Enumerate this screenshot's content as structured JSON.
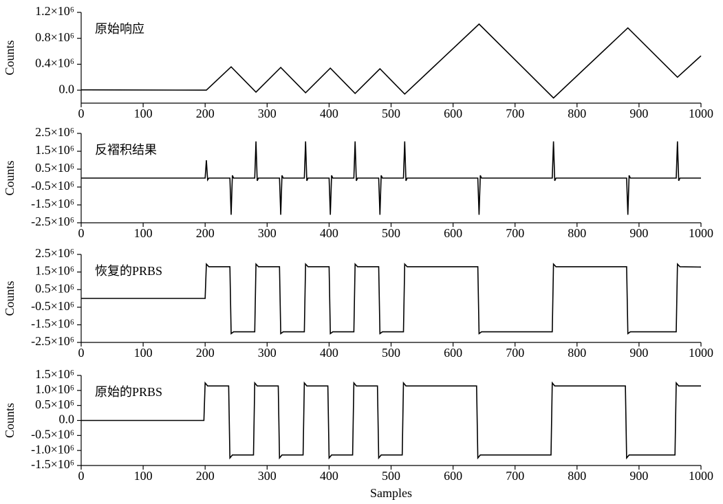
{
  "chart_data": [
    {
      "type": "line",
      "annotation": "原始响应",
      "ylabel": "Counts",
      "color": "#000000",
      "x": [
        0,
        202,
        242,
        282,
        322,
        362,
        402,
        442,
        482,
        522,
        642,
        762,
        882,
        962,
        1000
      ],
      "values": [
        5000,
        0,
        360000,
        -30000,
        350000,
        -40000,
        340000,
        -50000,
        330000,
        -60000,
        1020000,
        -120000,
        960000,
        200000,
        530000
      ],
      "xlim": [
        0,
        1000
      ],
      "xticks": [
        0,
        100,
        200,
        300,
        400,
        500,
        600,
        700,
        800,
        900,
        1000
      ],
      "ylim": [
        -200000,
        1200000
      ],
      "yticks": [
        {
          "value": 0,
          "label": "0.0"
        },
        {
          "value": 400000,
          "label": "0.4×10⁶"
        },
        {
          "value": 800000,
          "label": "0.8×10⁶"
        },
        {
          "value": 1200000,
          "label": "1.2×10⁶"
        }
      ]
    },
    {
      "type": "line",
      "annotation": "反褶积结果",
      "ylabel": "Counts",
      "color": "#000000",
      "x": [
        0,
        200,
        202,
        204,
        206,
        240,
        242,
        244,
        246,
        280,
        282,
        284,
        286,
        320,
        322,
        324,
        326,
        360,
        362,
        364,
        366,
        400,
        402,
        404,
        406,
        440,
        442,
        444,
        446,
        480,
        482,
        484,
        486,
        520,
        522,
        524,
        526,
        640,
        642,
        644,
        646,
        760,
        762,
        764,
        766,
        880,
        882,
        884,
        886,
        960,
        962,
        964,
        966,
        1000
      ],
      "values": [
        0,
        0,
        1000000,
        -100000,
        0,
        0,
        -2050000,
        150000,
        0,
        0,
        2050000,
        -150000,
        0,
        0,
        -2050000,
        150000,
        0,
        0,
        2050000,
        -150000,
        0,
        0,
        -2050000,
        150000,
        0,
        0,
        2050000,
        -150000,
        0,
        0,
        -2050000,
        150000,
        0,
        0,
        2050000,
        -150000,
        0,
        0,
        -2050000,
        150000,
        0,
        0,
        2050000,
        -150000,
        0,
        0,
        -2050000,
        150000,
        0,
        0,
        2050000,
        -150000,
        0,
        0
      ],
      "xlim": [
        0,
        1000
      ],
      "xticks": [
        0,
        100,
        200,
        300,
        400,
        500,
        600,
        700,
        800,
        900,
        1000
      ],
      "ylim": [
        -2500000,
        2500000
      ],
      "yticks": [
        {
          "value": -2500000,
          "label": "-2.5×10⁶"
        },
        {
          "value": -1500000,
          "label": "-1.5×10⁶"
        },
        {
          "value": -500000,
          "label": "-0.5×10⁶"
        },
        {
          "value": 500000,
          "label": "0.5×10⁶"
        },
        {
          "value": 1500000,
          "label": "1.5×10⁶"
        },
        {
          "value": 2500000,
          "label": "2.5×10⁶"
        }
      ]
    },
    {
      "type": "line",
      "annotation": "恢复的PRBS",
      "ylabel": "Counts",
      "color": "#000000",
      "x": [
        0,
        200,
        202,
        206,
        240,
        242,
        246,
        280,
        282,
        286,
        320,
        322,
        326,
        360,
        362,
        366,
        400,
        402,
        406,
        440,
        442,
        446,
        480,
        482,
        486,
        520,
        522,
        526,
        640,
        642,
        646,
        760,
        762,
        766,
        880,
        882,
        886,
        960,
        962,
        966,
        1000
      ],
      "values": [
        0,
        0,
        1950000,
        1800000,
        1800000,
        -2000000,
        -1900000,
        -1900000,
        1950000,
        1800000,
        1800000,
        -2000000,
        -1900000,
        -1900000,
        1950000,
        1800000,
        1800000,
        -2000000,
        -1900000,
        -1900000,
        1950000,
        1800000,
        1800000,
        -2000000,
        -1900000,
        -1900000,
        1950000,
        1800000,
        1800000,
        -2000000,
        -1900000,
        -1900000,
        1950000,
        1800000,
        1800000,
        -2000000,
        -1900000,
        -1900000,
        1950000,
        1800000,
        1780000
      ],
      "xlim": [
        0,
        1000
      ],
      "xticks": [
        0,
        100,
        200,
        300,
        400,
        500,
        600,
        700,
        800,
        900,
        1000
      ],
      "ylim": [
        -2500000,
        2500000
      ],
      "yticks": [
        {
          "value": -2500000,
          "label": "-2.5×10⁶"
        },
        {
          "value": -1500000,
          "label": "-1.5×10⁶"
        },
        {
          "value": -500000,
          "label": "-0.5×10⁶"
        },
        {
          "value": 500000,
          "label": "0.5×10⁶"
        },
        {
          "value": 1500000,
          "label": "1.5×10⁶"
        },
        {
          "value": 2500000,
          "label": "2.5×10⁶"
        }
      ]
    },
    {
      "type": "line",
      "annotation": "原始的PRBS",
      "ylabel": "Counts",
      "xlabel": "Samples",
      "color": "#000000",
      "x": [
        0,
        198,
        200,
        204,
        238,
        240,
        244,
        278,
        280,
        284,
        318,
        320,
        324,
        358,
        360,
        364,
        398,
        400,
        404,
        438,
        440,
        444,
        478,
        480,
        484,
        518,
        520,
        524,
        638,
        640,
        644,
        758,
        760,
        764,
        878,
        880,
        884,
        958,
        960,
        964,
        1000
      ],
      "values": [
        0,
        0,
        1250000,
        1150000,
        1150000,
        -1250000,
        -1150000,
        -1150000,
        1250000,
        1150000,
        1150000,
        -1250000,
        -1150000,
        -1150000,
        1250000,
        1150000,
        1150000,
        -1250000,
        -1150000,
        -1150000,
        1250000,
        1150000,
        1150000,
        -1250000,
        -1150000,
        -1150000,
        1250000,
        1150000,
        1150000,
        -1250000,
        -1150000,
        -1150000,
        1250000,
        1150000,
        1150000,
        -1250000,
        -1150000,
        -1150000,
        1250000,
        1150000,
        1150000
      ],
      "xlim": [
        0,
        1000
      ],
      "xticks": [
        0,
        100,
        200,
        300,
        400,
        500,
        600,
        700,
        800,
        900,
        1000
      ],
      "ylim": [
        -1500000,
        1500000
      ],
      "yticks": [
        {
          "value": -1500000,
          "label": "-1.5×10⁶"
        },
        {
          "value": -1000000,
          "label": "-1.0×10⁶"
        },
        {
          "value": -500000,
          "label": "-0.5×10⁶"
        },
        {
          "value": 0,
          "label": "0.0"
        },
        {
          "value": 500000,
          "label": "0.5×10⁶"
        },
        {
          "value": 1000000,
          "label": "1.0×10⁶"
        },
        {
          "value": 1500000,
          "label": "1.5×10⁶"
        }
      ]
    }
  ]
}
